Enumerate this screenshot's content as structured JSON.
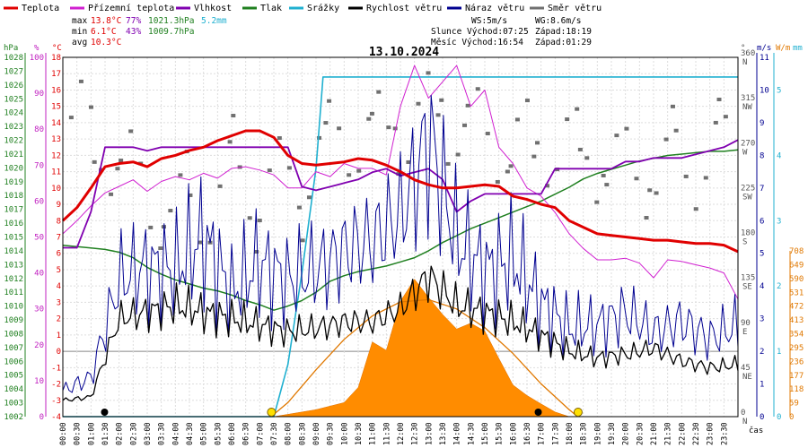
{
  "chart_data": {
    "type": "line",
    "title": "13.10.2024",
    "legend": [
      {
        "label": "Teplota",
        "color": "#e00000"
      },
      {
        "label": "Přízemní teplota",
        "color": "#d020d0"
      },
      {
        "label": "Vlhkost",
        "color": "#8000b0"
      },
      {
        "label": "Tlak",
        "color": "#208020"
      },
      {
        "label": "Srážky",
        "color": "#20b0d0"
      },
      {
        "label": "Rychlost větru",
        "color": "#000000"
      },
      {
        "label": "Náraz větru",
        "color": "#000090"
      },
      {
        "label": "Směr větru",
        "color": "#707070"
      }
    ],
    "stats": {
      "max_label": "max",
      "max_temp": "13.8°C",
      "max_hum": "77%",
      "max_press": "1021.3hPa",
      "max_rain": "5.2mm",
      "min_label": "min",
      "min_temp": "6.1°C",
      "min_hum": "43%",
      "min_press": "1009.7hPa",
      "avg_label": "avg",
      "avg_temp": "10.3°C",
      "ws": "WS:5m/s",
      "wg": "WG:8.6m/s",
      "sun": "Slunce Východ:07:25",
      "sun_set": "Západ:18:19",
      "moon": "Měsíc Východ:16:54",
      "moon_set": "Západ:01:29"
    },
    "units": {
      "hpa": "hPa",
      "pct": "%",
      "degc": "°C",
      "deg": "°",
      "ms": "m/s",
      "wm": "W/m",
      "xlabel": "čas"
    },
    "axes": {
      "pressure_ticks": [
        1002,
        1003,
        1004,
        1005,
        1006,
        1007,
        1008,
        1009,
        1010,
        1011,
        1012,
        1013,
        1014,
        1015,
        1016,
        1017,
        1018,
        1019,
        1020,
        1021,
        1022,
        1023,
        1024,
        1025,
        1026,
        1027,
        1028
      ],
      "humidity_ticks": [
        0,
        10,
        20,
        30,
        40,
        50,
        60,
        70,
        80,
        90,
        100
      ],
      "temperature_ticks": [
        -4,
        -3,
        -2,
        -1,
        0,
        1,
        2,
        3,
        4,
        5,
        6,
        7,
        8,
        9,
        10,
        11,
        12,
        13,
        14,
        15,
        16,
        17,
        18
      ],
      "direction_ticks": [
        {
          "deg": "0",
          "dir": "N"
        },
        {
          "deg": "45",
          "dir": "NE"
        },
        {
          "deg": "90",
          "dir": "E"
        },
        {
          "deg": "135",
          "dir": "SE"
        },
        {
          "deg": "180",
          "dir": "S"
        },
        {
          "deg": "225",
          "dir": "SW"
        },
        {
          "deg": "270",
          "dir": "W"
        },
        {
          "deg": "315",
          "dir": "NW"
        },
        {
          "deg": "360",
          "dir": "N"
        }
      ],
      "wind_ticks": [
        0,
        1,
        2,
        3,
        4,
        5,
        6,
        7,
        8,
        9,
        10,
        11
      ],
      "rain_ticks": [
        0,
        1,
        2,
        3,
        4,
        5
      ],
      "solar_ticks": [
        0,
        59,
        118,
        177,
        236,
        295,
        354,
        413,
        472,
        531,
        590,
        649,
        708
      ],
      "time_ticks": [
        "00:00",
        "00:30",
        "01:00",
        "01:30",
        "02:00",
        "02:30",
        "03:00",
        "03:30",
        "04:00",
        "04:30",
        "05:00",
        "05:30",
        "06:00",
        "06:30",
        "07:00",
        "07:30",
        "08:00",
        "08:30",
        "09:00",
        "09:30",
        "10:00",
        "10:30",
        "11:00",
        "11:30",
        "12:00",
        "12:30",
        "13:00",
        "13:30",
        "14:00",
        "14:30",
        "15:00",
        "15:30",
        "16:00",
        "16:30",
        "17:00",
        "17:30",
        "18:00",
        "18:30",
        "19:00",
        "19:30",
        "20:00",
        "20:30",
        "21:00",
        "21:30",
        "22:00",
        "22:30",
        "23:00",
        "23:30"
      ]
    },
    "series": {
      "temperature": {
        "x": [
          0,
          0.5,
          1,
          1.5,
          2,
          2.5,
          3,
          3.5,
          4,
          4.5,
          5,
          5.5,
          6,
          6.5,
          7,
          7.5,
          8,
          8.5,
          9,
          9.5,
          10,
          10.5,
          11,
          11.5,
          12,
          12.5,
          13,
          13.5,
          14,
          14.5,
          15,
          15.5,
          16,
          16.5,
          17,
          17.5,
          18,
          18.5,
          19,
          19.5,
          20,
          20.5,
          21,
          21.5,
          22,
          22.5,
          23,
          23.5,
          24
        ],
        "y": [
          8,
          8.8,
          10,
          11.3,
          11.5,
          11.6,
          11.3,
          11.8,
          12,
          12.3,
          12.5,
          12.9,
          13.2,
          13.5,
          13.5,
          13.1,
          12,
          11.5,
          11.4,
          11.5,
          11.6,
          11.8,
          11.7,
          11.4,
          11,
          10.5,
          10.2,
          10,
          10,
          10.1,
          10.2,
          10.1,
          9.5,
          9.3,
          9,
          8.8,
          8,
          7.6,
          7.2,
          7.1,
          7,
          6.9,
          6.8,
          6.8,
          6.7,
          6.6,
          6.6,
          6.5,
          6.1
        ]
      },
      "ground_temperature": {
        "x": [
          0,
          0.5,
          1,
          1.5,
          2,
          2.5,
          3,
          3.5,
          4,
          4.5,
          5,
          5.5,
          6,
          6.5,
          7,
          7.5,
          8,
          8.5,
          9,
          9.5,
          10,
          10.5,
          11,
          11.5,
          12,
          12.5,
          13,
          13.5,
          14,
          14.5,
          15,
          15.5,
          16,
          16.5,
          17,
          17.5,
          18,
          18.5,
          19,
          19.5,
          20,
          20.5,
          21,
          21.5,
          22,
          22.5,
          23,
          23.5,
          24
        ],
        "y": [
          7.2,
          8,
          8.9,
          9.7,
          10.1,
          10.5,
          9.8,
          10.4,
          10.7,
          10.5,
          10.9,
          10.6,
          11.2,
          11.3,
          11.1,
          10.8,
          10,
          10,
          11,
          10.7,
          11.5,
          11.2,
          11.2,
          10.8,
          15,
          17.5,
          15.5,
          16.5,
          17.5,
          15,
          16,
          12.5,
          11.5,
          10,
          9.5,
          8.5,
          7.2,
          6.3,
          5.6,
          5.6,
          5.7,
          5.4,
          4.5,
          5.6,
          5.5,
          5.3,
          5.1,
          4.8,
          3.2
        ]
      },
      "humidity": {
        "x": [
          0,
          0.5,
          1,
          1.5,
          2,
          2.5,
          3,
          3.5,
          4,
          4.5,
          5,
          5.5,
          6,
          6.5,
          7,
          7.5,
          8,
          8.5,
          9,
          9.5,
          10,
          10.5,
          11,
          11.5,
          12,
          12.5,
          13,
          13.5,
          14,
          14.5,
          15,
          15.5,
          16,
          16.5,
          17,
          17.5,
          18,
          18.5,
          19,
          19.5,
          20,
          20.5,
          21,
          21.5,
          22,
          22.5,
          23,
          23.5,
          24
        ],
        "y": [
          47,
          47,
          57,
          75,
          75,
          75,
          74,
          75,
          75,
          75,
          75,
          75,
          75,
          75,
          75,
          75,
          75,
          64,
          63,
          64,
          65,
          66,
          68,
          69,
          67,
          68,
          69,
          66,
          57,
          60,
          62,
          62,
          62,
          62,
          62,
          69,
          69,
          69,
          69,
          69,
          71,
          71,
          72,
          72,
          72,
          73,
          74,
          75,
          77
        ]
      },
      "pressure": {
        "x": [
          0,
          0.5,
          1,
          1.5,
          2,
          2.5,
          3,
          3.5,
          4,
          4.5,
          5,
          5.5,
          6,
          6.5,
          7,
          7.5,
          8,
          8.5,
          9,
          9.5,
          10,
          10.5,
          11,
          11.5,
          12,
          12.5,
          13,
          13.5,
          14,
          14.5,
          15,
          15.5,
          16,
          16.5,
          17,
          17.5,
          18,
          18.5,
          19,
          19.5,
          20,
          20.5,
          21,
          21.5,
          22,
          22.5,
          23,
          23.5,
          24
        ],
        "y": [
          1014.4,
          1014.3,
          1014.2,
          1014.1,
          1013.9,
          1013.5,
          1012.8,
          1012.3,
          1011.9,
          1011.6,
          1011.3,
          1011.1,
          1010.8,
          1010.4,
          1010.1,
          1009.7,
          1010,
          1010.4,
          1011,
          1011.8,
          1012.2,
          1012.5,
          1012.7,
          1012.9,
          1013.2,
          1013.5,
          1014,
          1014.6,
          1015.1,
          1015.6,
          1016,
          1016.4,
          1016.8,
          1017.2,
          1017.6,
          1018.1,
          1018.6,
          1019.2,
          1019.6,
          1019.9,
          1020.2,
          1020.5,
          1020.7,
          1020.9,
          1021,
          1021.1,
          1021.2,
          1021.2,
          1021.3
        ]
      },
      "rain": {
        "x": [
          0,
          7.5,
          8,
          8.5,
          9,
          9.25,
          9.5,
          10,
          12,
          14,
          16,
          18,
          20,
          22,
          24
        ],
        "y": [
          0,
          0,
          0.8,
          2.2,
          3.8,
          5.2,
          5.2,
          5.2,
          5.2,
          5.2,
          5.2,
          5.2,
          5.2,
          5.2,
          5.2
        ]
      },
      "wind_speed": {
        "x": [
          0,
          1,
          2,
          3,
          4,
          5,
          6,
          7,
          8,
          9,
          10,
          11,
          12,
          12.5,
          13,
          14,
          15,
          16,
          17,
          18,
          19,
          20,
          21,
          22,
          23,
          24
        ],
        "y": [
          0.5,
          0.6,
          3,
          3.2,
          3.4,
          3.2,
          3,
          2.8,
          2.6,
          2.7,
          2.9,
          2.9,
          3.3,
          3.8,
          4.3,
          3.4,
          3.2,
          2.9,
          2.5,
          2.0,
          1.8,
          1.9,
          2.1,
          1.7,
          1.5,
          1.6
        ]
      },
      "wind_gust": {
        "x": [
          0,
          1,
          2,
          3,
          4,
          5,
          6,
          7,
          8,
          9,
          10,
          11,
          12,
          12.5,
          13,
          14,
          15,
          16,
          17,
          18,
          19,
          20,
          21,
          22,
          23,
          24
        ],
        "y": [
          0.8,
          1.2,
          4.2,
          4.6,
          4.5,
          5.5,
          3.8,
          4.7,
          4.2,
          4.5,
          5.1,
          5.4,
          6.2,
          7.2,
          8.6,
          5.4,
          4.5,
          4.8,
          3.5,
          2.7,
          2.8,
          3.2,
          2.6,
          2.9,
          2.4,
          2.8
        ]
      },
      "wind_direction": {
        "x": [
          0,
          2,
          4,
          6,
          8,
          10,
          12,
          13,
          14,
          16,
          18,
          20,
          22,
          24
        ],
        "y": [
          285,
          250,
          215,
          240,
          215,
          270,
          300,
          320,
          305,
          255,
          255,
          262,
          265,
          255
        ]
      },
      "solar_radiation": {
        "x": [
          0,
          7.5,
          8,
          9,
          10,
          10.5,
          11,
          11.5,
          12,
          12.5,
          13,
          13.5,
          14,
          14.5,
          15,
          15.5,
          16,
          16.5,
          17,
          17.5,
          18,
          24
        ],
        "y": [
          0,
          0,
          10,
          30,
          70,
          150,
          330,
          250,
          420,
          560,
          580,
          530,
          400,
          360,
          310,
          230,
          150,
          110,
          60,
          20,
          0,
          0
        ]
      },
      "clear_sky_radiation": {
        "x": [
          7.4,
          8,
          9,
          10,
          11,
          12,
          13,
          14,
          15,
          16,
          17,
          18,
          18.3
        ],
        "y": [
          0,
          60,
          200,
          330,
          430,
          490,
          500,
          460,
          380,
          270,
          140,
          30,
          0
        ]
      }
    },
    "events": [
      "01:29",
      "07:25",
      "16:54",
      "18:19"
    ]
  }
}
